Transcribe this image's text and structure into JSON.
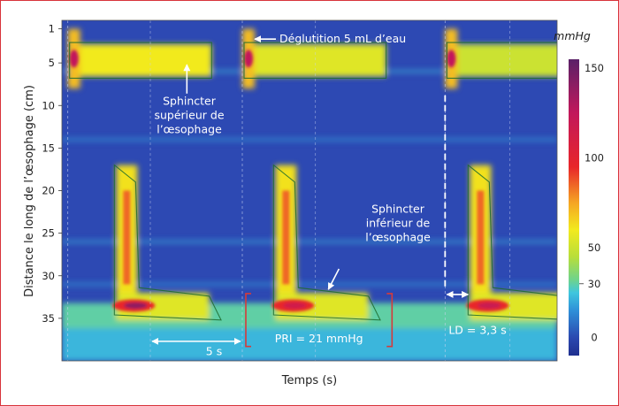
{
  "chart_data": {
    "type": "heatmap",
    "ylabel": "Distance le long de l’œsophage (cm)",
    "xlabel": "Temps (s)",
    "y_ticks": [
      1,
      5,
      10,
      15,
      20,
      25,
      30,
      35
    ],
    "ylim": [
      0,
      40
    ],
    "x_domain": [
      0,
      42
    ],
    "colorbar": {
      "unit": "mmHg",
      "ticks": [
        150,
        100,
        50,
        30,
        0
      ],
      "range": [
        -10,
        155
      ],
      "stops": [
        {
          "value": -10,
          "color": "#1f2f8f"
        },
        {
          "value": 0,
          "color": "#2b49b0"
        },
        {
          "value": 15,
          "color": "#2f8fd8"
        },
        {
          "value": 25,
          "color": "#3ec6de"
        },
        {
          "value": 32,
          "color": "#6dd38e"
        },
        {
          "value": 45,
          "color": "#b8de3a"
        },
        {
          "value": 60,
          "color": "#f2ea1e"
        },
        {
          "value": 75,
          "color": "#f5a623"
        },
        {
          "value": 95,
          "color": "#e8262a"
        },
        {
          "value": 125,
          "color": "#c2185b"
        },
        {
          "value": 155,
          "color": "#5a2168"
        }
      ]
    },
    "swallows": [
      {
        "t_start": 0.5,
        "ues_pressure": 60,
        "les_peak": 140,
        "body_top_cm": 17,
        "les_peak_time": 5.5
      },
      {
        "t_start": 15.3,
        "ues_pressure": 55,
        "les_peak": 115,
        "body_top_cm": 17,
        "les_peak_time": 19.0
      },
      {
        "t_start": 32.5,
        "ues_pressure": 50,
        "les_peak": 120,
        "body_top_cm": 17,
        "les_peak_time": 35.5
      }
    ],
    "annotations": {
      "swallow": "Déglutition 5 mL d’eau",
      "ues": [
        "Sphincter",
        "supérieur de",
        "l’œsophage"
      ],
      "les": [
        "Sphincter",
        "inférieur de",
        "l’œsophage"
      ],
      "interval": "5 s",
      "iri": "PRI = 21 mmHg",
      "dl": "LD = 3,3 s"
    }
  }
}
